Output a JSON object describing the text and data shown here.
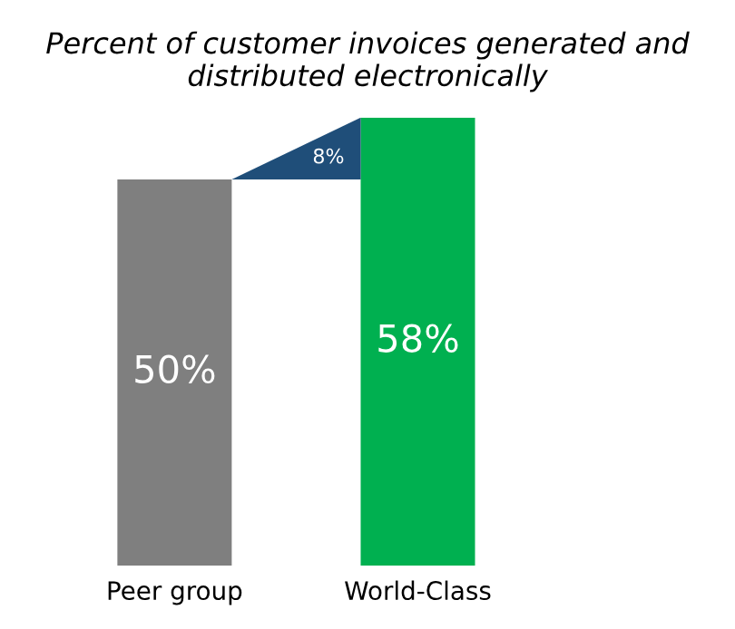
{
  "chart_data": {
    "type": "bar",
    "title": "Percent of customer invoices generated and distributed electronically",
    "categories": [
      "Peer group",
      "World-Class"
    ],
    "values": [
      50,
      58
    ],
    "colors": [
      "#7f7f7f",
      "#00b050"
    ],
    "value_labels": [
      "50%",
      "58%"
    ],
    "annotations": [
      "8%"
    ],
    "legend": false,
    "grid": false
  }
}
